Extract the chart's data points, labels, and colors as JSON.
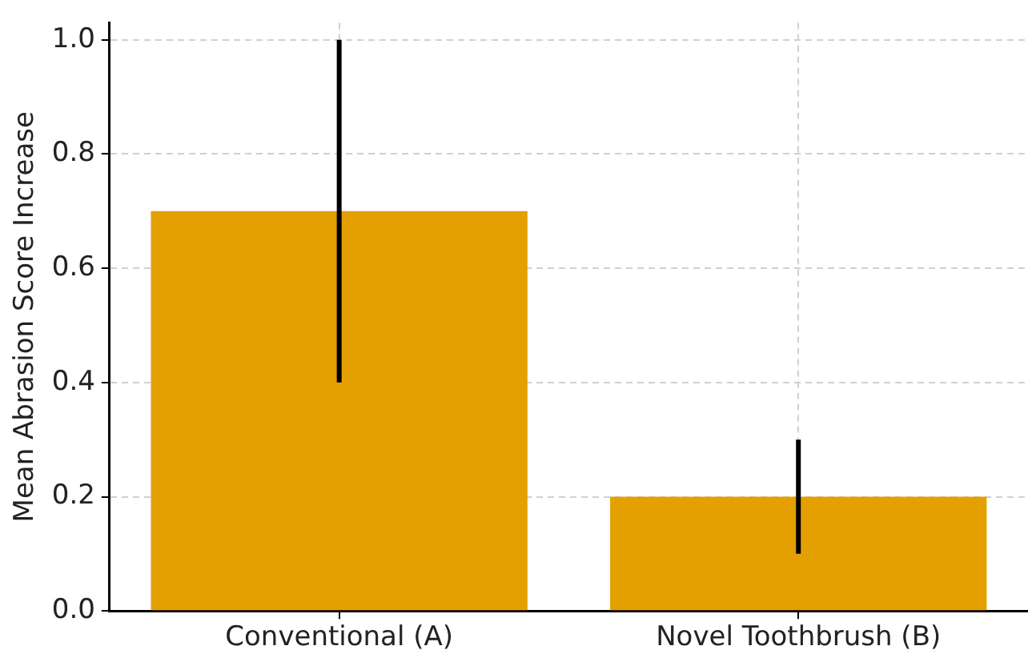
{
  "chart_data": {
    "type": "bar",
    "ylabel": "Mean Abrasion Score Increase",
    "categories": [
      "Conventional (A)",
      "Novel Toothbrush (B)"
    ],
    "values": [
      0.7,
      0.2
    ],
    "errors": [
      0.3,
      0.1
    ],
    "color": "#e3a000",
    "ylim": [
      0,
      1.03
    ],
    "yticks": [
      {
        "value": 0,
        "label": "0.0"
      },
      0.2,
      0.4,
      0.6,
      0.8,
      {
        "value": 1,
        "label": "1.0"
      }
    ],
    "grid": true,
    "legend": false
  }
}
